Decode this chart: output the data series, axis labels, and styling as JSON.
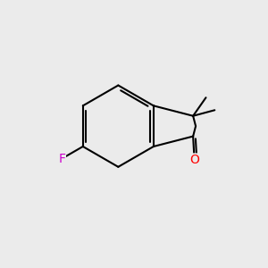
{
  "background_color": "#ebebeb",
  "bond_color": "#000000",
  "ketone_O_color": "#ff0000",
  "F_color": "#cc00cc",
  "line_width": 1.5,
  "figsize": [
    3.0,
    3.0
  ],
  "dpi": 100,
  "xlim": [
    0,
    10
  ],
  "ylim": [
    0,
    10
  ]
}
